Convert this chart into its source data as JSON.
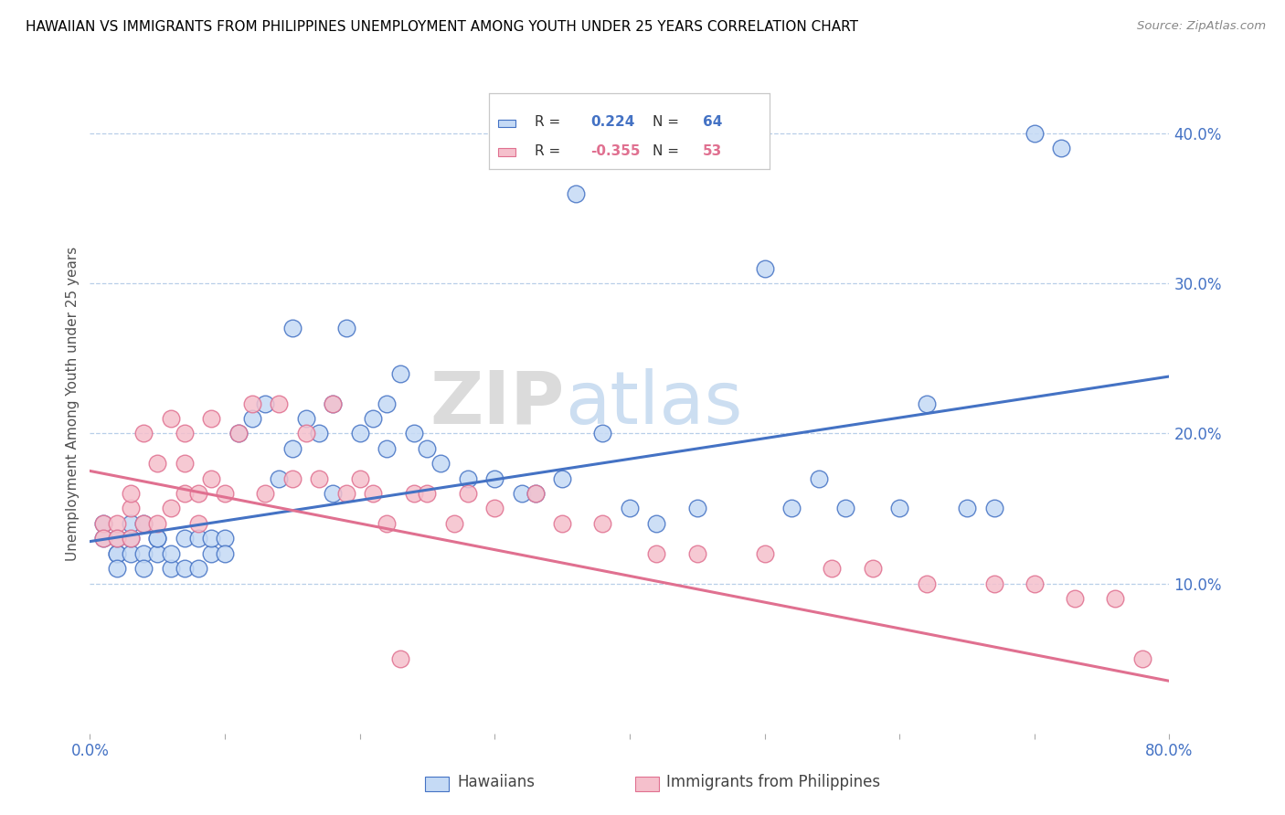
{
  "title": "HAWAIIAN VS IMMIGRANTS FROM PHILIPPINES UNEMPLOYMENT AMONG YOUTH UNDER 25 YEARS CORRELATION CHART",
  "source": "Source: ZipAtlas.com",
  "watermark_zip": "ZIP",
  "watermark_atlas": "atlas",
  "ylabel": "Unemployment Among Youth under 25 years",
  "xlim": [
    0.0,
    0.8
  ],
  "ylim": [
    0.0,
    0.44
  ],
  "x_ticks": [
    0.0,
    0.1,
    0.2,
    0.3,
    0.4,
    0.5,
    0.6,
    0.7,
    0.8
  ],
  "y_ticks_right": [
    0.0,
    0.1,
    0.2,
    0.3,
    0.4
  ],
  "y_tick_labels_right": [
    "",
    "10.0%",
    "20.0%",
    "30.0%",
    "40.0%"
  ],
  "hawaiians_color": "#c5daf5",
  "philippines_color": "#f5c0cc",
  "line_hawaiians_color": "#4472c4",
  "line_philippines_color": "#e07090",
  "legend_R_hawaiians": "0.224",
  "legend_N_hawaiians": "64",
  "legend_R_philippines": "-0.355",
  "legend_N_philippines": "53",
  "hawaiians_x": [
    0.01,
    0.01,
    0.02,
    0.02,
    0.02,
    0.02,
    0.03,
    0.03,
    0.03,
    0.04,
    0.04,
    0.04,
    0.05,
    0.05,
    0.05,
    0.06,
    0.06,
    0.07,
    0.07,
    0.08,
    0.08,
    0.09,
    0.09,
    0.1,
    0.1,
    0.11,
    0.12,
    0.13,
    0.14,
    0.15,
    0.15,
    0.16,
    0.17,
    0.18,
    0.18,
    0.19,
    0.2,
    0.21,
    0.22,
    0.22,
    0.23,
    0.24,
    0.25,
    0.26,
    0.28,
    0.3,
    0.32,
    0.33,
    0.35,
    0.36,
    0.38,
    0.4,
    0.42,
    0.45,
    0.5,
    0.52,
    0.54,
    0.56,
    0.6,
    0.62,
    0.65,
    0.67,
    0.7,
    0.72
  ],
  "hawaiians_y": [
    0.14,
    0.13,
    0.12,
    0.12,
    0.13,
    0.11,
    0.12,
    0.13,
    0.14,
    0.12,
    0.14,
    0.11,
    0.12,
    0.13,
    0.13,
    0.11,
    0.12,
    0.13,
    0.11,
    0.13,
    0.11,
    0.12,
    0.13,
    0.13,
    0.12,
    0.2,
    0.21,
    0.22,
    0.17,
    0.27,
    0.19,
    0.21,
    0.2,
    0.22,
    0.16,
    0.27,
    0.2,
    0.21,
    0.19,
    0.22,
    0.24,
    0.2,
    0.19,
    0.18,
    0.17,
    0.17,
    0.16,
    0.16,
    0.17,
    0.36,
    0.2,
    0.15,
    0.14,
    0.15,
    0.31,
    0.15,
    0.17,
    0.15,
    0.15,
    0.22,
    0.15,
    0.15,
    0.4,
    0.39
  ],
  "philippines_x": [
    0.01,
    0.01,
    0.02,
    0.02,
    0.03,
    0.03,
    0.03,
    0.04,
    0.04,
    0.05,
    0.05,
    0.06,
    0.06,
    0.07,
    0.07,
    0.07,
    0.08,
    0.08,
    0.09,
    0.09,
    0.1,
    0.11,
    0.12,
    0.13,
    0.14,
    0.15,
    0.16,
    0.17,
    0.18,
    0.19,
    0.2,
    0.21,
    0.22,
    0.23,
    0.24,
    0.25,
    0.27,
    0.28,
    0.3,
    0.33,
    0.35,
    0.38,
    0.42,
    0.45,
    0.5,
    0.55,
    0.58,
    0.62,
    0.67,
    0.7,
    0.73,
    0.76,
    0.78
  ],
  "philippines_y": [
    0.14,
    0.13,
    0.14,
    0.13,
    0.15,
    0.13,
    0.16,
    0.14,
    0.2,
    0.14,
    0.18,
    0.15,
    0.21,
    0.16,
    0.18,
    0.2,
    0.16,
    0.14,
    0.21,
    0.17,
    0.16,
    0.2,
    0.22,
    0.16,
    0.22,
    0.17,
    0.2,
    0.17,
    0.22,
    0.16,
    0.17,
    0.16,
    0.14,
    0.05,
    0.16,
    0.16,
    0.14,
    0.16,
    0.15,
    0.16,
    0.14,
    0.14,
    0.12,
    0.12,
    0.12,
    0.11,
    0.11,
    0.1,
    0.1,
    0.1,
    0.09,
    0.09,
    0.05
  ],
  "trend_h_x0": 0.0,
  "trend_h_y0": 0.128,
  "trend_h_x1": 0.8,
  "trend_h_y1": 0.238,
  "trend_p_x0": 0.0,
  "trend_p_y0": 0.175,
  "trend_p_x1": 0.8,
  "trend_p_y1": 0.035
}
